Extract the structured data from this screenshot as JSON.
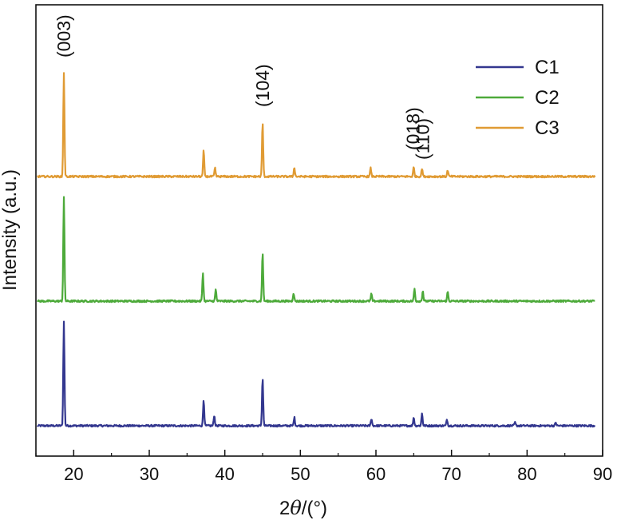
{
  "chart_data": {
    "type": "line",
    "xlabel_prefix": "2",
    "xlabel_theta": "θ",
    "xlabel_suffix": "/(°)",
    "ylabel": "Intensity (a.u.)",
    "xlim": [
      15,
      90
    ],
    "xticks": [
      "20",
      "30",
      "40",
      "50",
      "60",
      "70",
      "80",
      "90"
    ],
    "yticks_shown": false,
    "legend_position": "top-right",
    "peak_labels": [
      {
        "text": "(003)",
        "x": 18.7
      },
      {
        "text": "(104)",
        "x": 45.0
      },
      {
        "text": "(018)",
        "x": 64.9
      },
      {
        "text": "(110)",
        "x": 66.2
      }
    ],
    "series": [
      {
        "name": "C1",
        "color": "#33378f",
        "baseline": 0,
        "peaks": [
          [
            18.7,
            100
          ],
          [
            37.2,
            25
          ],
          [
            38.6,
            10
          ],
          [
            45.0,
            46
          ],
          [
            49.2,
            8
          ],
          [
            59.4,
            7
          ],
          [
            65.0,
            8
          ],
          [
            66.1,
            12
          ],
          [
            69.4,
            6
          ],
          [
            78.4,
            3
          ],
          [
            83.8,
            3
          ]
        ]
      },
      {
        "name": "C2",
        "color": "#4daa3a",
        "baseline": 120,
        "peaks": [
          [
            18.7,
            100
          ],
          [
            37.1,
            27
          ],
          [
            38.8,
            11
          ],
          [
            45.0,
            47
          ],
          [
            49.1,
            8
          ],
          [
            59.4,
            7
          ],
          [
            65.1,
            12
          ],
          [
            66.2,
            10
          ],
          [
            69.5,
            9
          ]
        ]
      },
      {
        "name": "C3",
        "color": "#e09b34",
        "baseline": 240,
        "peaks": [
          [
            18.7,
            100
          ],
          [
            37.2,
            25
          ],
          [
            38.7,
            8
          ],
          [
            45.0,
            52
          ],
          [
            49.2,
            9
          ],
          [
            59.3,
            8
          ],
          [
            65.0,
            9
          ],
          [
            66.1,
            8
          ],
          [
            69.5,
            6
          ]
        ]
      }
    ]
  }
}
